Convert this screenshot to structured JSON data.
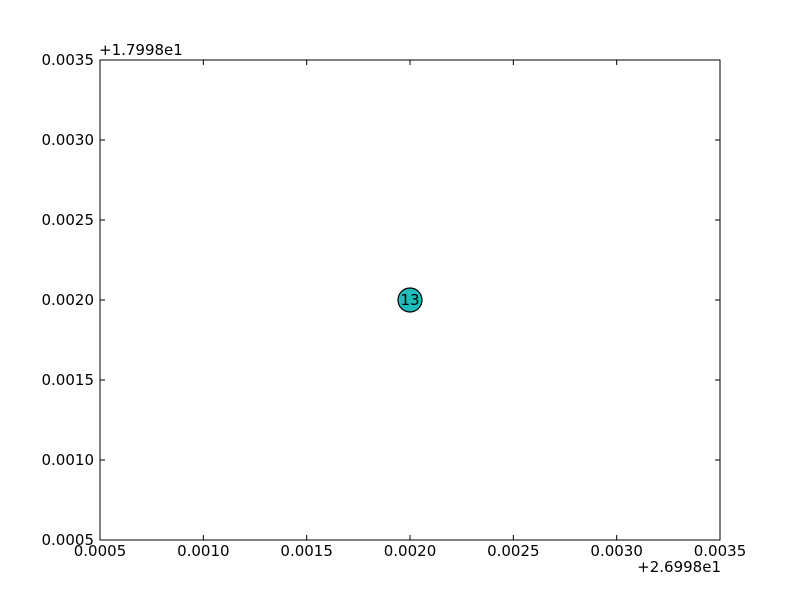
{
  "chart_data": {
    "type": "scatter",
    "title": "",
    "xlabel": "",
    "ylabel": "",
    "x_offset_label": "+2.6998e1",
    "y_offset_label": "+1.7998e1",
    "xlim": [
      0.0005,
      0.0035
    ],
    "ylim": [
      0.0005,
      0.0035
    ],
    "x_ticks": [
      "0.0005",
      "0.0010",
      "0.0015",
      "0.0020",
      "0.0025",
      "0.0030",
      "0.0035"
    ],
    "y_ticks": [
      "0.0005",
      "0.0010",
      "0.0015",
      "0.0020",
      "0.0025",
      "0.0030",
      "0.0035"
    ],
    "grid": false,
    "marker_color": "#1fbcbc",
    "points": [
      {
        "x": 0.002,
        "y": 0.002,
        "label": "13"
      }
    ]
  }
}
